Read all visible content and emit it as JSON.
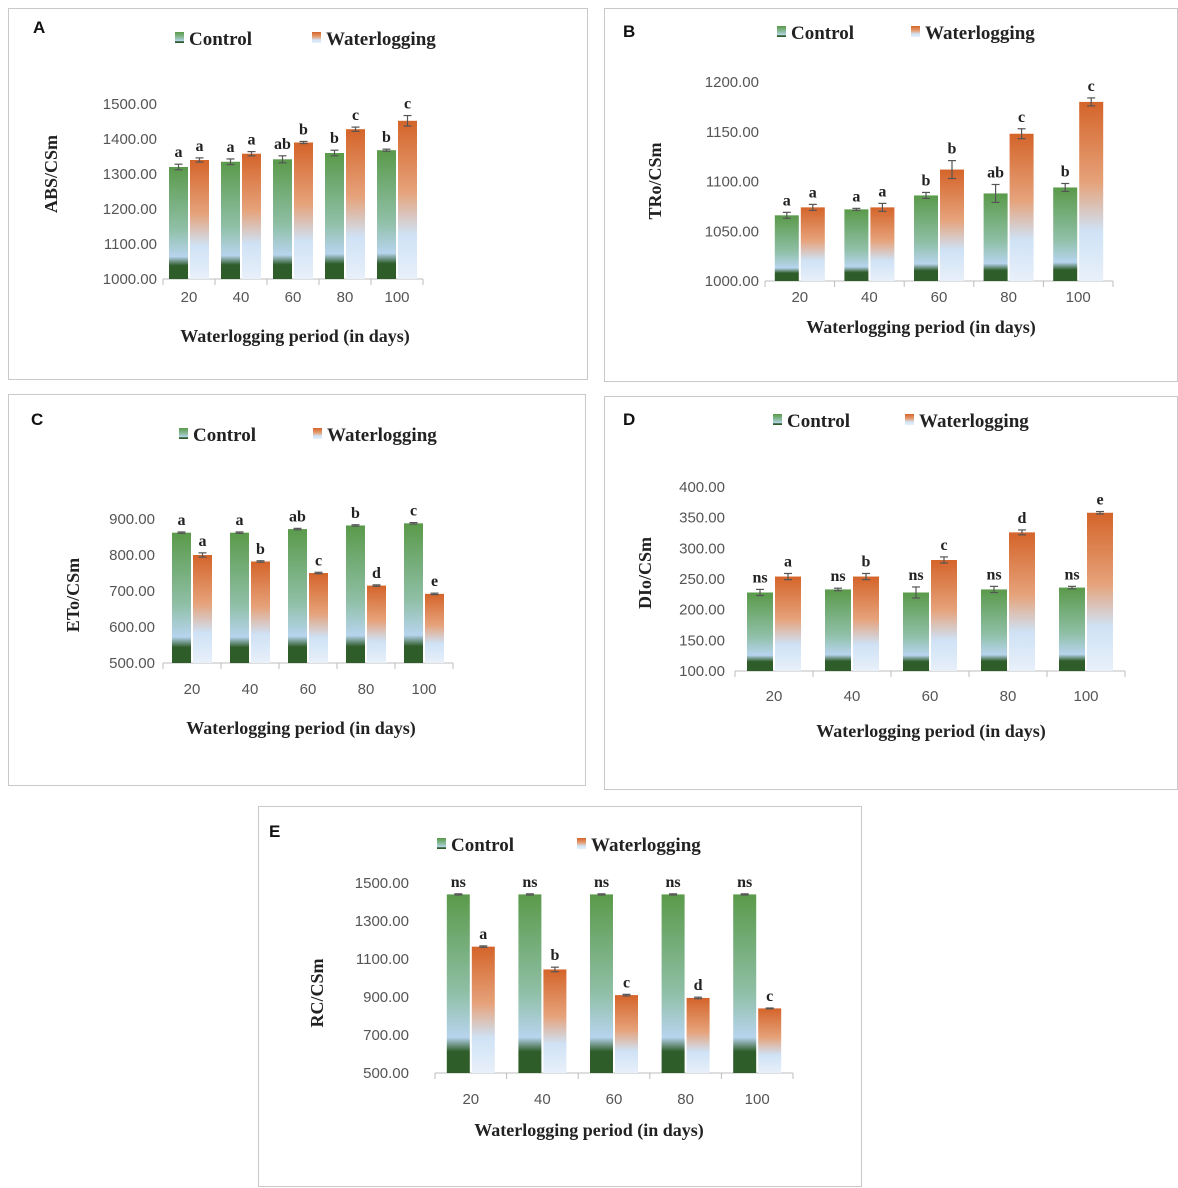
{
  "legend": {
    "control": "Control",
    "waterlogging": "Waterlogging"
  },
  "colors": {
    "control_top": "#5a9a4a",
    "control_dark": "#2f5d2a",
    "control_light": "#b7d4ee",
    "water_top": "#d4642a",
    "water_light": "#cfe2f5",
    "error": "#555555",
    "axis": "#bdbdbd"
  },
  "chart_data": [
    {
      "panel": "A",
      "type": "bar",
      "categories": [
        "20",
        "40",
        "60",
        "80",
        "100"
      ],
      "xlabel": "Waterlogging period (in days)",
      "ylabel": "ABS/CSm",
      "ylim": [
        1000,
        1500
      ],
      "yticks": [
        "1000.00",
        "1100.00",
        "1200.00",
        "1300.00",
        "1400.00",
        "1500.00"
      ],
      "series": [
        {
          "name": "Control",
          "values": [
            1320,
            1335,
            1342,
            1360,
            1368
          ],
          "errors": [
            8,
            8,
            10,
            8,
            3
          ],
          "labels": [
            "a",
            "a",
            "ab",
            "b",
            "b"
          ]
        },
        {
          "name": "Waterlogging",
          "values": [
            1340,
            1358,
            1390,
            1428,
            1452
          ],
          "errors": [
            6,
            6,
            3,
            6,
            15
          ],
          "labels": [
            "a",
            "a",
            "b",
            "c",
            "c"
          ]
        }
      ]
    },
    {
      "panel": "B",
      "type": "bar",
      "categories": [
        "20",
        "40",
        "60",
        "80",
        "100"
      ],
      "xlabel": "Waterlogging period (in days)",
      "ylabel": "TRo/CSm",
      "ylim": [
        1000,
        1200
      ],
      "yticks": [
        "1000.00",
        "1050.00",
        "1100.00",
        "1150.00",
        "1200.00"
      ],
      "series": [
        {
          "name": "Control",
          "values": [
            1066,
            1072,
            1086,
            1088,
            1094
          ],
          "errors": [
            3,
            1,
            3,
            9,
            4
          ],
          "labels": [
            "a",
            "a",
            "b",
            "ab",
            "b"
          ]
        },
        {
          "name": "Waterlogging",
          "values": [
            1074,
            1074,
            1112,
            1148,
            1180
          ],
          "errors": [
            3,
            4,
            9,
            5,
            4
          ],
          "labels": [
            "a",
            "a",
            "b",
            "c",
            "c"
          ]
        }
      ]
    },
    {
      "panel": "C",
      "type": "bar",
      "categories": [
        "20",
        "40",
        "60",
        "80",
        "100"
      ],
      "xlabel": "Waterlogging period (in days)",
      "ylabel": "ETo/CSm",
      "ylim": [
        500,
        900
      ],
      "yticks": [
        "500.00",
        "600.00",
        "700.00",
        "800.00",
        "900.00"
      ],
      "series": [
        {
          "name": "Control",
          "values": [
            862,
            862,
            872,
            882,
            888
          ],
          "errors": [
            2,
            2,
            2,
            2,
            2
          ],
          "labels": [
            "a",
            "a",
            "ab",
            "b",
            "c"
          ]
        },
        {
          "name": "Waterlogging",
          "values": [
            800,
            782,
            750,
            715,
            692
          ],
          "errors": [
            6,
            2,
            2,
            2,
            2
          ],
          "labels": [
            "a",
            "b",
            "c",
            "d",
            "e"
          ]
        }
      ]
    },
    {
      "panel": "D",
      "type": "bar",
      "categories": [
        "20",
        "40",
        "60",
        "80",
        "100"
      ],
      "xlabel": "Waterlogging period (in days)",
      "ylabel": "DIo/CSm",
      "ylim": [
        100,
        400
      ],
      "yticks": [
        "100.00",
        "150.00",
        "200.00",
        "250.00",
        "300.00",
        "350.00",
        "400.00"
      ],
      "series": [
        {
          "name": "Control",
          "values": [
            228,
            233,
            228,
            233,
            236
          ],
          "errors": [
            5,
            2,
            9,
            5,
            2
          ],
          "labels": [
            "ns",
            "ns",
            "ns",
            "ns",
            "ns"
          ]
        },
        {
          "name": "Waterlogging",
          "values": [
            254,
            254,
            281,
            326,
            358
          ],
          "errors": [
            5,
            5,
            5,
            4,
            2
          ],
          "labels": [
            "a",
            "b",
            "c",
            "d",
            "e"
          ]
        }
      ]
    },
    {
      "panel": "E",
      "type": "bar",
      "categories": [
        "20",
        "40",
        "60",
        "80",
        "100"
      ],
      "xlabel": "Waterlogging period (in days)",
      "ylabel": "RC/CSm",
      "ylim": [
        500,
        1500
      ],
      "yticks": [
        "500.00",
        "700.00",
        "900.00",
        "1100.00",
        "1300.00",
        "1500.00"
      ],
      "series": [
        {
          "name": "Control",
          "values": [
            1440,
            1440,
            1440,
            1440,
            1440
          ],
          "errors": [
            3,
            3,
            3,
            3,
            3
          ],
          "labels": [
            "ns",
            "ns",
            "ns",
            "ns",
            "ns"
          ]
        },
        {
          "name": "Waterlogging",
          "values": [
            1165,
            1045,
            910,
            895,
            840
          ],
          "errors": [
            4,
            12,
            4,
            4,
            2
          ],
          "labels": [
            "a",
            "b",
            "c",
            "d",
            "c"
          ]
        }
      ]
    }
  ]
}
